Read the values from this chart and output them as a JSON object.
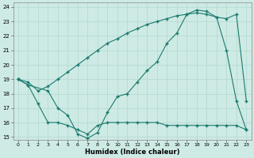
{
  "xlabel": "Humidex (Indice chaleur)",
  "bg_color": "#ceeae4",
  "line_color": "#1a7a6e",
  "grid_color": "#b0d8d0",
  "xlim": [
    -0.5,
    23.5
  ],
  "ylim": [
    14.8,
    24.3
  ],
  "xticks": [
    0,
    1,
    2,
    3,
    4,
    5,
    6,
    7,
    8,
    9,
    10,
    11,
    12,
    13,
    14,
    15,
    16,
    17,
    18,
    19,
    20,
    21,
    22,
    23
  ],
  "yticks": [
    15,
    16,
    17,
    18,
    19,
    20,
    21,
    22,
    23,
    24
  ],
  "line1_x": [
    0,
    1,
    2,
    3,
    4,
    5,
    6,
    7,
    8,
    9,
    10,
    11,
    12,
    13,
    14,
    15,
    16,
    17,
    18,
    19,
    20,
    21,
    22,
    23
  ],
  "line1_y": [
    19.0,
    18.6,
    17.3,
    16.0,
    16.0,
    15.8,
    15.5,
    15.2,
    15.8,
    16.0,
    16.0,
    16.0,
    16.0,
    16.0,
    16.0,
    15.8,
    15.8,
    15.8,
    15.8,
    15.8,
    15.8,
    15.8,
    15.8,
    15.5
  ],
  "line2_x": [
    0,
    1,
    2,
    3,
    4,
    5,
    6,
    7,
    8,
    9,
    10,
    11,
    12,
    13,
    14,
    15,
    16,
    17,
    18,
    19,
    20,
    21,
    22,
    23
  ],
  "line2_y": [
    19.0,
    18.8,
    18.2,
    18.5,
    19.0,
    19.5,
    20.0,
    20.5,
    21.0,
    21.5,
    21.8,
    22.2,
    22.5,
    22.8,
    23.0,
    23.2,
    23.4,
    23.5,
    23.6,
    23.5,
    23.3,
    23.2,
    23.5,
    17.5
  ],
  "line3_x": [
    0,
    1,
    3,
    4,
    5,
    6,
    7,
    8,
    9,
    10,
    11,
    12,
    13,
    14,
    15,
    16,
    17,
    18,
    19,
    20,
    21,
    22,
    23
  ],
  "line3_y": [
    19.0,
    18.6,
    18.2,
    17.0,
    16.5,
    15.2,
    14.9,
    15.3,
    16.7,
    17.8,
    18.0,
    18.8,
    19.6,
    20.2,
    21.5,
    22.2,
    23.5,
    23.8,
    23.7,
    23.3,
    21.0,
    17.5,
    15.5
  ]
}
